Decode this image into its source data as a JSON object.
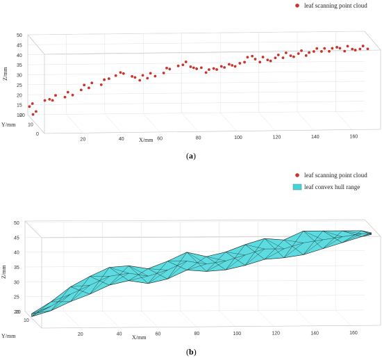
{
  "chart_data": [
    {
      "type": "scatter",
      "panel_caption": "a",
      "legend": {
        "position": "top-right",
        "entries": [
          {
            "label": "leaf scanning point cloud",
            "color": "#c8352b"
          }
        ]
      },
      "axes": {
        "xlabel": "X/mm",
        "ylabel": "Y/mm",
        "zlabel": "Z/mm",
        "xticks": [
          "20",
          "40",
          "60",
          "80",
          "100",
          "120",
          "140",
          "160"
        ],
        "yticks": [
          "0",
          "10",
          "20"
        ],
        "zticks": [
          "10",
          "15",
          "20",
          "25",
          "30",
          "35",
          "40",
          "45",
          "50"
        ],
        "xlim": [
          0,
          175
        ],
        "ylim": [
          0,
          20
        ],
        "zlim": [
          10,
          50
        ]
      },
      "series": [
        {
          "color": "#c8352b",
          "points": [
            [
              0,
              18,
              15
            ],
            [
              1,
              16,
              12
            ],
            [
              2,
              19,
              16
            ],
            [
              3,
              17,
              13
            ],
            [
              8,
              18,
              18
            ],
            [
              10,
              17,
              19
            ],
            [
              12,
              18,
              18
            ],
            [
              14,
              19,
              20
            ],
            [
              18,
              17,
              20
            ],
            [
              20,
              18,
              22
            ],
            [
              22,
              17,
              21
            ],
            [
              26,
              16,
              24
            ],
            [
              28,
              17,
              26
            ],
            [
              30,
              16,
              25
            ],
            [
              32,
              17,
              27
            ],
            [
              36,
              15,
              27
            ],
            [
              38,
              16,
              29
            ],
            [
              40,
              15,
              30
            ],
            [
              44,
              16,
              31
            ],
            [
              46,
              15,
              33
            ],
            [
              48,
              16,
              32
            ],
            [
              52,
              15,
              31
            ],
            [
              54,
              16,
              30
            ],
            [
              56,
              15,
              29
            ],
            [
              58,
              16,
              31
            ],
            [
              60,
              15,
              30
            ],
            [
              62,
              16,
              32
            ],
            [
              64,
              15,
              31
            ],
            [
              68,
              14,
              33
            ],
            [
              70,
              15,
              35
            ],
            [
              72,
              16,
              34
            ],
            [
              76,
              15,
              36
            ],
            [
              78,
              14,
              37
            ],
            [
              80,
              15,
              38
            ],
            [
              82,
              14,
              36
            ],
            [
              84,
              15,
              35
            ],
            [
              86,
              16,
              34
            ],
            [
              88,
              15,
              35
            ],
            [
              90,
              14,
              33
            ],
            [
              92,
              15,
              34
            ],
            [
              94,
              14,
              35
            ],
            [
              96,
              15,
              34
            ],
            [
              98,
              14,
              36
            ],
            [
              100,
              15,
              35
            ],
            [
              102,
              14,
              37
            ],
            [
              104,
              15,
              36
            ],
            [
              106,
              16,
              35
            ],
            [
              108,
              15,
              37
            ],
            [
              110,
              14,
              38
            ],
            [
              112,
              15,
              40
            ],
            [
              114,
              14,
              41
            ],
            [
              116,
              15,
              39
            ],
            [
              118,
              14,
              38
            ],
            [
              120,
              15,
              40
            ],
            [
              122,
              14,
              39
            ],
            [
              124,
              15,
              38
            ],
            [
              126,
              14,
              40
            ],
            [
              128,
              15,
              41
            ],
            [
              130,
              14,
              40
            ],
            [
              132,
              15,
              42
            ],
            [
              134,
              14,
              41
            ],
            [
              136,
              15,
              40
            ],
            [
              138,
              14,
              42
            ],
            [
              140,
              15,
              43
            ],
            [
              142,
              14,
              41
            ],
            [
              144,
              15,
              42
            ],
            [
              146,
              14,
              43
            ],
            [
              148,
              15,
              44
            ],
            [
              150,
              14,
              43
            ],
            [
              152,
              15,
              44
            ],
            [
              154,
              14,
              43
            ],
            [
              156,
              15,
              44
            ],
            [
              158,
              14,
              45
            ],
            [
              160,
              15,
              44
            ],
            [
              162,
              14,
              43
            ],
            [
              164,
              15,
              45
            ],
            [
              166,
              14,
              44
            ],
            [
              168,
              15,
              43
            ],
            [
              170,
              14,
              44
            ],
            [
              172,
              15,
              45
            ],
            [
              174,
              14,
              44
            ]
          ]
        }
      ]
    },
    {
      "type": "scatter",
      "panel_caption": "b",
      "legend": {
        "position": "top-right",
        "entries": [
          {
            "label": "leaf scanning point cloud",
            "color": "#c8352b"
          },
          {
            "label": "leaf convex hull range",
            "color": "#3fd6dc"
          }
        ]
      },
      "axes": {
        "xlabel": "X/mm",
        "ylabel": "Y/mm",
        "zlabel": "Z/mm",
        "xticks": [
          "20",
          "40",
          "60",
          "80",
          "100",
          "120",
          "140",
          "160"
        ],
        "yticks": [
          "10",
          "20"
        ],
        "zticks": [
          "20",
          "25",
          "30",
          "35",
          "40",
          "45",
          "50"
        ],
        "xlim": [
          0,
          175
        ],
        "ylim": [
          0,
          20
        ],
        "zlim": [
          20,
          50
        ]
      },
      "hull_color": "#3fd6dc"
    }
  ]
}
